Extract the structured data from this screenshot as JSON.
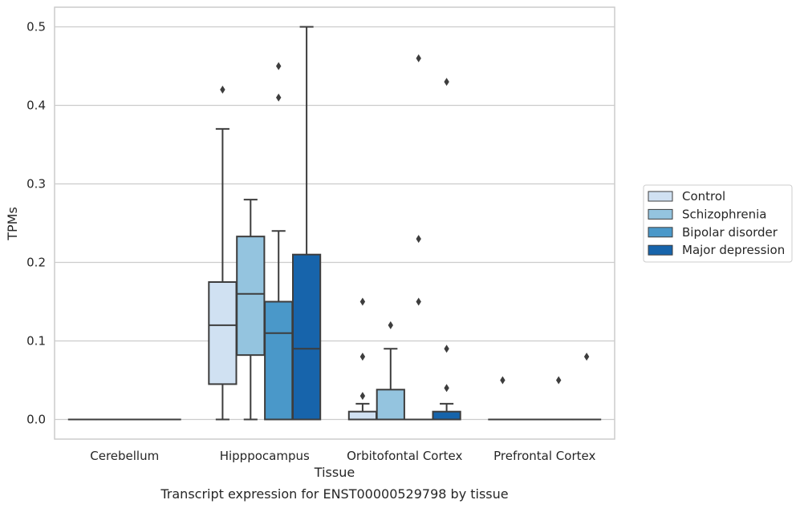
{
  "chart_data": {
    "type": "box",
    "xlabel": "Tissue",
    "ylabel": "TPMs",
    "caption": "Transcript expression for ENST00000529798 by tissue",
    "ylim": [
      -0.025,
      0.525
    ],
    "yticks": [
      0.0,
      0.1,
      0.2,
      0.3,
      0.4,
      0.5
    ],
    "ytick_labels": [
      "0.0",
      "0.1",
      "0.2",
      "0.3",
      "0.4",
      "0.5"
    ],
    "grid": "horizontal",
    "legend_position": "right",
    "categories": [
      "Cerebellum",
      "Hipppocampus",
      "Orbitofontal Cortex",
      "Prefrontal Cortex"
    ],
    "series": [
      {
        "name": "Control",
        "color": "#d0e1f2",
        "boxes": [
          {
            "whislo": 0,
            "q1": 0,
            "med": 0,
            "q3": 0,
            "whishi": 0,
            "fliers": []
          },
          {
            "whislo": 0,
            "q1": 0.045,
            "med": 0.12,
            "q3": 0.175,
            "whishi": 0.37,
            "fliers": [
              0.42
            ]
          },
          {
            "whislo": 0,
            "q1": 0,
            "med": 0,
            "q3": 0.01,
            "whishi": 0.02,
            "fliers": [
              0.03,
              0.08,
              0.15
            ]
          },
          {
            "whislo": 0,
            "q1": 0,
            "med": 0,
            "q3": 0,
            "whishi": 0,
            "fliers": [
              0.05
            ]
          }
        ]
      },
      {
        "name": "Schizophrenia",
        "color": "#94c4df",
        "boxes": [
          {
            "whislo": 0,
            "q1": 0,
            "med": 0,
            "q3": 0,
            "whishi": 0,
            "fliers": []
          },
          {
            "whislo": 0,
            "q1": 0.082,
            "med": 0.16,
            "q3": 0.233,
            "whishi": 0.28,
            "fliers": []
          },
          {
            "whislo": 0,
            "q1": 0,
            "med": 0,
            "q3": 0.038,
            "whishi": 0.09,
            "fliers": [
              0.12
            ]
          },
          {
            "whislo": 0,
            "q1": 0,
            "med": 0,
            "q3": 0,
            "whishi": 0,
            "fliers": []
          }
        ]
      },
      {
        "name": "Bipolar disorder",
        "color": "#4a98c9",
        "boxes": [
          {
            "whislo": 0,
            "q1": 0,
            "med": 0,
            "q3": 0,
            "whishi": 0,
            "fliers": []
          },
          {
            "whislo": 0,
            "q1": 0,
            "med": 0.11,
            "q3": 0.15,
            "whishi": 0.24,
            "fliers": [
              0.41,
              0.45
            ]
          },
          {
            "whislo": 0,
            "q1": 0,
            "med": 0,
            "q3": 0,
            "whishi": 0,
            "fliers": [
              0.15,
              0.23,
              0.46
            ]
          },
          {
            "whislo": 0,
            "q1": 0,
            "med": 0,
            "q3": 0,
            "whishi": 0,
            "fliers": [
              0.05
            ]
          }
        ]
      },
      {
        "name": "Major depression",
        "color": "#1764ab",
        "boxes": [
          {
            "whislo": 0,
            "q1": 0,
            "med": 0,
            "q3": 0,
            "whishi": 0,
            "fliers": []
          },
          {
            "whislo": 0,
            "q1": 0,
            "med": 0.09,
            "q3": 0.21,
            "whishi": 0.5,
            "fliers": []
          },
          {
            "whislo": 0,
            "q1": 0,
            "med": 0,
            "q3": 0.01,
            "whishi": 0.02,
            "fliers": [
              0.04,
              0.09,
              0.43
            ]
          },
          {
            "whislo": 0,
            "q1": 0,
            "med": 0,
            "q3": 0,
            "whishi": 0,
            "fliers": [
              0.08
            ]
          }
        ]
      }
    ]
  },
  "style": {
    "edge_color": "#3d3d3d",
    "grid_color": "#cccccc",
    "frame_color": "#cccccc"
  }
}
